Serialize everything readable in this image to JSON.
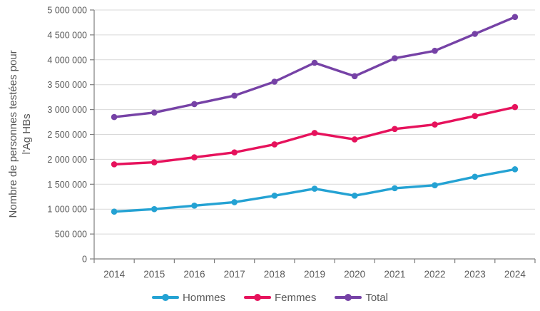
{
  "chart_data": {
    "type": "line",
    "title": "",
    "ylabel": "Nombre de personnes testées pour l'Ag HBs",
    "ylabel_lines": [
      "Nombre de personnes testées pour",
      "l'Ag HBs"
    ],
    "xlabel": "",
    "categories": [
      "2014",
      "2015",
      "2016",
      "2017",
      "2018",
      "2019",
      "2020",
      "2021",
      "2022",
      "2023",
      "2024"
    ],
    "series": [
      {
        "name": "Hommes",
        "color": "#24A2D3",
        "values": [
          950000,
          1000000,
          1070000,
          1140000,
          1270000,
          1410000,
          1270000,
          1420000,
          1480000,
          1650000,
          1800000
        ]
      },
      {
        "name": "Femmes",
        "color": "#E6125C",
        "values": [
          1900000,
          1940000,
          2040000,
          2140000,
          2300000,
          2530000,
          2400000,
          2610000,
          2700000,
          2870000,
          3050000
        ]
      },
      {
        "name": "Total",
        "color": "#7642A6",
        "values": [
          2850000,
          2940000,
          3110000,
          3280000,
          3560000,
          3940000,
          3670000,
          4030000,
          4180000,
          4520000,
          4860000
        ]
      }
    ],
    "ylim": [
      0,
      5000000
    ],
    "ytick_step": 500000,
    "ytick_labels": [
      "0",
      "500 000",
      "1 000 000",
      "1 500 000",
      "2 000 000",
      "2 500 000",
      "3 000 000",
      "3 500 000",
      "4 000 000",
      "4 500 000",
      "5 000 000"
    ],
    "grid": "horizontal",
    "legend_position": "bottom",
    "colors": {
      "grid": "#D9D9D9",
      "axis": "#7F7F7F",
      "tick_labels": "#595959",
      "axis_title": "#555555",
      "background": "#FFFFFF"
    }
  }
}
